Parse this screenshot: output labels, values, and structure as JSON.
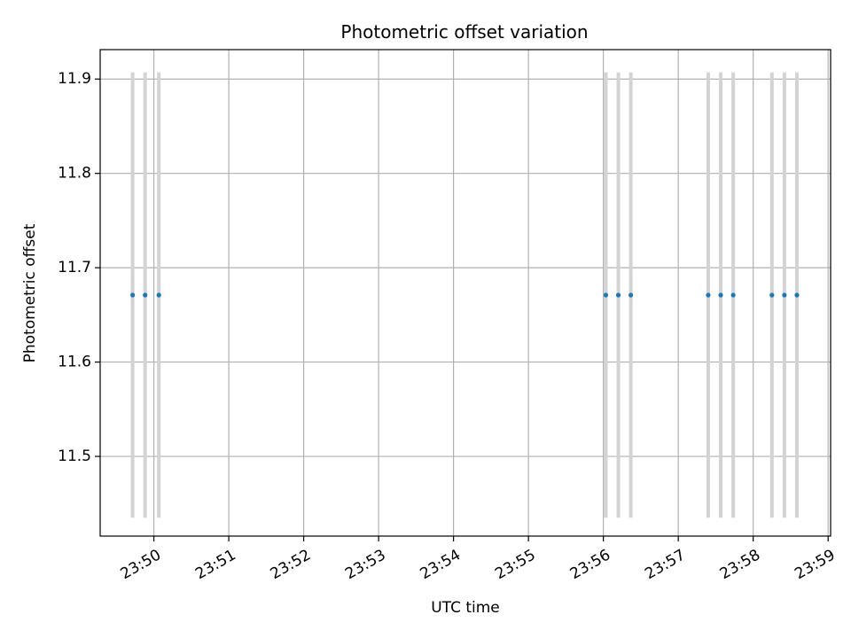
{
  "chart_data": {
    "type": "scatter",
    "title": "Photometric offset variation",
    "xlabel": "UTC time",
    "ylabel": "Photometric offset",
    "x_axis_type": "time",
    "xlim": [
      "23:49:17",
      "23:59:02"
    ],
    "ylim": [
      11.4155,
      11.9312
    ],
    "x_ticks": [
      "23:50",
      "23:51",
      "23:52",
      "23:53",
      "23:54",
      "23:55",
      "23:56",
      "23:57",
      "23:58",
      "23:59"
    ],
    "y_ticks": [
      "11.5",
      "11.6",
      "11.7",
      "11.8",
      "11.9"
    ],
    "grid": true,
    "legend": "none",
    "error_bars": true,
    "series": [
      {
        "x": [
          "23:49:43",
          "23:49:53",
          "23:50:04",
          "23:56:02",
          "23:56:12",
          "23:56:22",
          "23:57:24",
          "23:57:34",
          "23:57:44",
          "23:58:15",
          "23:58:25",
          "23:58:35"
        ],
        "y": [
          11.671,
          11.671,
          11.671,
          11.671,
          11.671,
          11.671,
          11.671,
          11.671,
          11.671,
          11.671,
          11.671,
          11.671
        ],
        "err": [
          0.236,
          0.236,
          0.236,
          0.236,
          0.236,
          0.236,
          0.236,
          0.236,
          0.236,
          0.236,
          0.236,
          0.236
        ]
      }
    ],
    "colors": {
      "point": "#1f77b4",
      "error_bar": "#d3d3d3",
      "grid": "#b0b0b0",
      "axis": "#000000"
    }
  }
}
